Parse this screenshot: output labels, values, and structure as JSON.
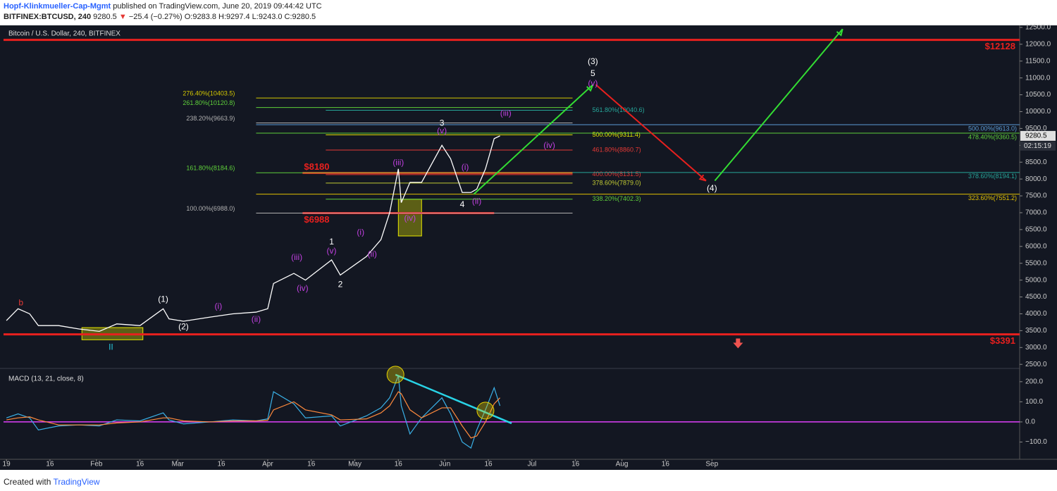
{
  "header": {
    "author": "Hopf-Klinkmueller-Cap-Mgmt",
    "published": "published on TradingView.com, June 20, 2019 09:44:42 UTC",
    "symbol": "BITFINEX:BTCUSD, 240",
    "last": "9280.5",
    "arrow": "▼",
    "change": "−25.4 (−0.27%)",
    "ohlc": [
      {
        "label": "O:",
        "value": "9283.8"
      },
      {
        "label": "H:",
        "value": "9297.4"
      },
      {
        "label": "L:",
        "value": "9243.0"
      },
      {
        "label": "C:",
        "value": "9280.5"
      }
    ]
  },
  "footer": {
    "created": "Created with",
    "brand": "TradingView"
  },
  "chart_data": [
    {
      "type": "line",
      "title": "Bitcoin / U.S. Dollar, 240, BITFINEX",
      "grid": false,
      "x": [
        "2019-01-01",
        "2019-01-05",
        "2019-01-09",
        "2019-01-12",
        "2019-01-19",
        "2019-01-26",
        "2019-02-02",
        "2019-02-08",
        "2019-02-16",
        "2019-02-24",
        "2019-02-26",
        "2019-03-03",
        "2019-03-12",
        "2019-03-20",
        "2019-03-28",
        "2019-04-01",
        "2019-04-03",
        "2019-04-10",
        "2019-04-14",
        "2019-04-23",
        "2019-04-26",
        "2019-05-05",
        "2019-05-10",
        "2019-05-13",
        "2019-05-16",
        "2019-05-17",
        "2019-05-20",
        "2019-05-24",
        "2019-05-31",
        "2019-06-03",
        "2019-06-07",
        "2019-06-10",
        "2019-06-12",
        "2019-06-15",
        "2019-06-18",
        "2019-06-20"
      ],
      "series": [
        {
          "color": "#ffffff",
          "values": [
            3800,
            4150,
            4000,
            3650,
            3650,
            3550,
            3480,
            3700,
            3650,
            4150,
            3850,
            3780,
            3900,
            4000,
            4050,
            4150,
            4900,
            5200,
            5000,
            5600,
            5150,
            5700,
            6200,
            7000,
            8300,
            7300,
            7900,
            7900,
            9000,
            8600,
            7600,
            7600,
            7700,
            8300,
            9200,
            9280
          ]
        }
      ],
      "xlim": [
        "2018-12-31",
        "2019-12-16"
      ],
      "ylim": [
        2400,
        12560
      ],
      "yticks": [
        {
          "value": 2500,
          "label": "2500.0"
        },
        {
          "value": 3000,
          "label": "3000.0"
        },
        {
          "value": 3500,
          "label": "3500.0"
        },
        {
          "value": 4000,
          "label": "4000.0"
        },
        {
          "value": 4500,
          "label": "4500.0"
        },
        {
          "value": 5000,
          "label": "5000.0"
        },
        {
          "value": 5500,
          "label": "5500.0"
        },
        {
          "value": 6000,
          "label": "6000.0"
        },
        {
          "value": 6500,
          "label": "6500.0"
        },
        {
          "value": 7000,
          "label": "7000.0"
        },
        {
          "value": 7500,
          "label": "7500.0"
        },
        {
          "value": 8000,
          "label": "8000.0"
        },
        {
          "value": 8500,
          "label": "8500.0"
        },
        {
          "value": 9000,
          "label": "9000.0"
        },
        {
          "value": 9500,
          "label": "9500.0"
        },
        {
          "value": 10000,
          "label": "10000.0"
        },
        {
          "value": 10500,
          "label": "10500.0"
        },
        {
          "value": 11000,
          "label": "11000.0"
        },
        {
          "value": 11500,
          "label": "11500.0"
        },
        {
          "value": 12000,
          "label": "12000.0"
        },
        {
          "value": 12500,
          "label": "12500.0"
        }
      ],
      "last_price": {
        "value": 9280.5,
        "countdown": "02:15:19"
      },
      "levels": [
        {
          "value": 12128,
          "label": "$12128",
          "color": "#e8201e",
          "label_pos": "right-below"
        },
        {
          "value": 3391,
          "label": "$3391",
          "color": "#e8201e",
          "label_pos": "right-below"
        },
        {
          "value": 8180,
          "label": "$8180",
          "color": "#e8201e",
          "label_pos": "left-above",
          "x": [
            "2019-04-13",
            "2019-07-15"
          ]
        },
        {
          "value": 6988,
          "label": "$6988",
          "color": "#e8201e",
          "label_pos": "left-below",
          "x": [
            "2019-04-13",
            "2019-06-18"
          ]
        }
      ],
      "fibs": [
        {
          "label": "276.40%(10403.5)",
          "value": 10403.5,
          "x": [
            "2019-03-28",
            "2019-07-15"
          ],
          "color": "#d4c800",
          "label_pos": "left"
        },
        {
          "label": "261.80%(10120.8)",
          "value": 10120.8,
          "x": [
            "2019-03-28",
            "2019-07-15"
          ],
          "color": "#5ecf3a",
          "label_pos": "left"
        },
        {
          "label": "238.20%(9663.9)",
          "value": 9663.9,
          "x": [
            "2019-03-28",
            "2019-07-15"
          ],
          "color": "#b0b0b0",
          "label_pos": "left"
        },
        {
          "label": "161.80%(8184.6)",
          "value": 8184.6,
          "x": [
            "2019-03-28",
            "2019-07-15"
          ],
          "color": "#5ecf3a",
          "label_pos": "left"
        },
        {
          "label": "100.00%(6988.0)",
          "value": 6988.0,
          "x": [
            "2019-03-28",
            "2019-07-15"
          ],
          "color": "#b0b0b0",
          "label_pos": "left"
        },
        {
          "label": "561.80%(10040.6)",
          "value": 10040.6,
          "x": [
            "2019-04-21",
            "2019-07-15"
          ],
          "color": "#26a69a",
          "label_pos": "right"
        },
        {
          "label": "500.00%(9311.4)",
          "value": 9311.4,
          "x": [
            "2019-04-21",
            "2019-07-15"
          ],
          "color": "#e6e600",
          "label_pos": "right"
        },
        {
          "label": "461.80%(8860.7)",
          "value": 8860.7,
          "x": [
            "2019-04-21",
            "2019-07-15"
          ],
          "color": "#e53935",
          "label_pos": "right"
        },
        {
          "label": "400.00%(8131.5)",
          "value": 8131.5,
          "x": [
            "2019-04-21",
            "2019-07-15"
          ],
          "color": "#e53935",
          "label_pos": "right"
        },
        {
          "label": "378.60%(7879.0)",
          "value": 7879.0,
          "x": [
            "2019-04-21",
            "2019-07-15"
          ],
          "color": "#c0ca33",
          "label_pos": "right"
        },
        {
          "label": "338.20%(7402.3)",
          "value": 7402.3,
          "x": [
            "2019-04-21",
            "2019-07-15"
          ],
          "color": "#5ecf3a",
          "label_pos": "right"
        },
        {
          "label": "500.00%(9613.0)",
          "value": 9613.0,
          "x": [
            "2019-03-28",
            "2019-12-16"
          ],
          "color": "#5b9bd5",
          "label_pos": "end"
        },
        {
          "label": "478.40%(9360.5)",
          "value": 9360.5,
          "x": [
            "2019-03-28",
            "2019-12-16"
          ],
          "color": "#5ecf3a",
          "label_pos": "end"
        },
        {
          "label": "378.60%(8194.1)",
          "value": 8194.1,
          "x": [
            "2019-07-15",
            "2019-12-16"
          ],
          "color": "#26a69a",
          "label_pos": "end"
        },
        {
          "label": "323.60%(7551.2)",
          "value": 7551.2,
          "x": [
            "2019-03-28",
            "2019-12-16"
          ],
          "color": "#e0c000",
          "label_pos": "end"
        }
      ],
      "boxes": [
        {
          "x": [
            "2019-01-27",
            "2019-02-17"
          ],
          "y": [
            3230,
            3590
          ],
          "color": "#e6e600"
        },
        {
          "x": [
            "2019-05-16",
            "2019-05-24"
          ],
          "y": [
            6310,
            7400
          ],
          "color": "#e6e600"
        }
      ],
      "arrows": [
        {
          "from": [
            "2019-06-11",
            7550
          ],
          "to": [
            "2019-07-22",
            10800
          ],
          "color": "#33dd33"
        },
        {
          "from": [
            "2019-07-23",
            10800
          ],
          "to": [
            "2019-08-30",
            7950
          ],
          "color": "#e8201e"
        },
        {
          "from": [
            "2019-09-02",
            7950
          ],
          "to": [
            "2019-10-16",
            12450
          ],
          "color": "#33dd33"
        }
      ],
      "markers": [
        {
          "x": "2019-09-10",
          "y": 3100,
          "color": "#ef5350"
        }
      ],
      "annotations": [
        {
          "text": "b",
          "x": "2019-01-06",
          "y": 4320,
          "color": "#e53935"
        },
        {
          "text": "II",
          "x": "2019-02-06",
          "y": 3000,
          "color": "#26c6da"
        },
        {
          "text": "(1)",
          "x": "2019-02-24",
          "y": 4425,
          "color": "#ffffff"
        },
        {
          "text": "(2)",
          "x": "2019-03-03",
          "y": 3610,
          "color": "#ffffff"
        },
        {
          "text": "(i)",
          "x": "2019-03-15",
          "y": 4215,
          "color": "#c040e0"
        },
        {
          "text": "(ii)",
          "x": "2019-03-28",
          "y": 3820,
          "color": "#c040e0"
        },
        {
          "text": "(iii)",
          "x": "2019-04-11",
          "y": 5660,
          "color": "#c040e0"
        },
        {
          "text": "(iv)",
          "x": "2019-04-13",
          "y": 4740,
          "color": "#c040e0"
        },
        {
          "text": "1",
          "x": "2019-04-23",
          "y": 6120,
          "color": "#ffffff"
        },
        {
          "text": "(v)",
          "x": "2019-04-23",
          "y": 5850,
          "color": "#c040e0"
        },
        {
          "text": "2",
          "x": "2019-04-26",
          "y": 4860,
          "color": "#ffffff"
        },
        {
          "text": "(i)",
          "x": "2019-05-03",
          "y": 6410,
          "color": "#c040e0"
        },
        {
          "text": "(ii)",
          "x": "2019-05-07",
          "y": 5760,
          "color": "#c040e0"
        },
        {
          "text": "(iii)",
          "x": "2019-05-16",
          "y": 8480,
          "color": "#c040e0"
        },
        {
          "text": "(iv)",
          "x": "2019-05-20",
          "y": 6830,
          "color": "#c040e0"
        },
        {
          "text": "3",
          "x": "2019-05-31",
          "y": 9650,
          "color": "#ffffff"
        },
        {
          "text": "(v)",
          "x": "2019-05-31",
          "y": 9420,
          "color": "#c040e0"
        },
        {
          "text": "(i)",
          "x": "2019-06-08",
          "y": 8340,
          "color": "#c040e0"
        },
        {
          "text": "(ii)",
          "x": "2019-06-12",
          "y": 7330,
          "color": "#c040e0"
        },
        {
          "text": "4",
          "x": "2019-06-07",
          "y": 7230,
          "color": "#ffffff"
        },
        {
          "text": "(iii)",
          "x": "2019-06-22",
          "y": 9940,
          "color": "#c040e0"
        },
        {
          "text": "(iv)",
          "x": "2019-07-07",
          "y": 8990,
          "color": "#c040e0"
        },
        {
          "text": "(3)",
          "x": "2019-07-22",
          "y": 11480,
          "color": "#ffffff"
        },
        {
          "text": "5",
          "x": "2019-07-22",
          "y": 11120,
          "color": "#ffffff"
        },
        {
          "text": "(v)",
          "x": "2019-07-22",
          "y": 10830,
          "color": "#c040e0"
        },
        {
          "text": "(4)",
          "x": "2019-09-01",
          "y": 7710,
          "color": "#ffffff"
        }
      ]
    },
    {
      "type": "line",
      "title": "MACD (13, 21, close, 8)",
      "grid": false,
      "x": [
        "2019-01-01",
        "2019-01-05",
        "2019-01-09",
        "2019-01-12",
        "2019-01-19",
        "2019-01-26",
        "2019-02-02",
        "2019-02-08",
        "2019-02-16",
        "2019-02-24",
        "2019-02-26",
        "2019-03-03",
        "2019-03-12",
        "2019-03-20",
        "2019-03-28",
        "2019-04-01",
        "2019-04-03",
        "2019-04-10",
        "2019-04-14",
        "2019-04-23",
        "2019-04-26",
        "2019-05-05",
        "2019-05-10",
        "2019-05-13",
        "2019-05-16",
        "2019-05-17",
        "2019-05-20",
        "2019-05-24",
        "2019-05-31",
        "2019-06-03",
        "2019-06-07",
        "2019-06-10",
        "2019-06-12",
        "2019-06-15",
        "2019-06-18",
        "2019-06-20"
      ],
      "series": [
        {
          "color": "#3ab0e6",
          "values": [
            20,
            40,
            20,
            -40,
            -20,
            -15,
            -20,
            10,
            5,
            45,
            10,
            -10,
            0,
            10,
            5,
            15,
            150,
            90,
            20,
            30,
            -20,
            30,
            70,
            120,
            230,
            80,
            -60,
            20,
            120,
            40,
            -100,
            -130,
            -40,
            60,
            170,
            80
          ]
        },
        {
          "color": "#ff8a3d",
          "values": [
            10,
            20,
            25,
            10,
            -15,
            -15,
            -15,
            -5,
            0,
            20,
            20,
            5,
            0,
            5,
            5,
            8,
            60,
            100,
            60,
            35,
            10,
            15,
            45,
            80,
            150,
            140,
            60,
            20,
            70,
            70,
            -20,
            -80,
            -70,
            0,
            90,
            120
          ]
        }
      ],
      "baseline": {
        "value": 0,
        "color": "#e040fb"
      },
      "xlim": [
        "2018-12-31",
        "2019-12-16"
      ],
      "ylim": [
        -186,
        266
      ],
      "yticks": [
        {
          "value": 200,
          "label": "200.0"
        },
        {
          "value": 100,
          "label": "100.0"
        },
        {
          "value": 0,
          "label": "0.0"
        },
        {
          "value": -100,
          "label": "−100.0"
        }
      ],
      "xticks": [
        {
          "value": "2019-01-01",
          "label": "19"
        },
        {
          "value": "2019-01-16",
          "label": "16"
        },
        {
          "value": "2019-02-01",
          "label": "Feb"
        },
        {
          "value": "2019-02-16",
          "label": "16"
        },
        {
          "value": "2019-03-01",
          "label": "Mar"
        },
        {
          "value": "2019-03-16",
          "label": "16"
        },
        {
          "value": "2019-04-01",
          "label": "Apr"
        },
        {
          "value": "2019-04-16",
          "label": "16"
        },
        {
          "value": "2019-05-01",
          "label": "May"
        },
        {
          "value": "2019-05-16",
          "label": "16"
        },
        {
          "value": "2019-06-01",
          "label": "Jun"
        },
        {
          "value": "2019-06-16",
          "label": "16"
        },
        {
          "value": "2019-07-01",
          "label": "Jul"
        },
        {
          "value": "2019-07-16",
          "label": "16"
        },
        {
          "value": "2019-08-01",
          "label": "Aug"
        },
        {
          "value": "2019-08-16",
          "label": "16"
        },
        {
          "value": "2019-09-01",
          "label": "Sep"
        }
      ],
      "circles": [
        {
          "x": "2019-05-15",
          "y": 235,
          "color": "#e6d200"
        },
        {
          "x": "2019-06-15",
          "y": 56,
          "color": "#e6d200"
        }
      ],
      "trendline": {
        "from": [
          "2019-05-15",
          235
        ],
        "to": [
          "2019-06-24",
          -7
        ],
        "color": "#29d3e6"
      }
    }
  ]
}
